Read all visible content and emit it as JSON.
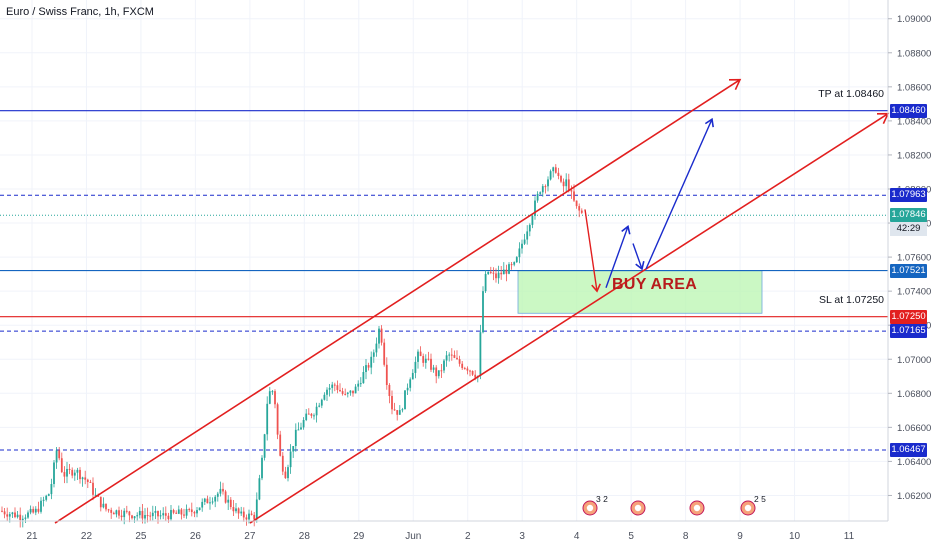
{
  "header": {
    "title": "Euro / Swiss Franc, 1h, FXCM"
  },
  "annotations": {
    "buy_area": "BUY AREA",
    "tp_label": "TP at 1.08460",
    "sl_label": "SL at 1.07250",
    "countdown": "42:29"
  },
  "colors": {
    "background": "#ffffff",
    "up_candle": "#26a69a",
    "down_candle": "#ef5350",
    "channel": "#e21f1f",
    "blue_line": "#1a2bcc",
    "buy_zone": "#b9f6b0",
    "current_price": "#26a69a"
  },
  "chart_data": {
    "type": "candlestick",
    "title": "Euro / Swiss Franc, 1h, FXCM",
    "ylim": [
      1.0605,
      1.0911
    ],
    "y_ticks": [
      "1.09000",
      "1.08800",
      "1.08600",
      "1.08400",
      "1.08200",
      "1.08000",
      "1.07800",
      "1.07600",
      "1.07400",
      "1.07200",
      "1.07000",
      "1.06800",
      "1.06600",
      "1.06400",
      "1.06200"
    ],
    "x_ticks": [
      "21",
      "22",
      "25",
      "26",
      "27",
      "28",
      "29",
      "Jun",
      "2",
      "3",
      "4",
      "5",
      "8",
      "9",
      "10",
      "11"
    ],
    "price_tags": [
      {
        "value": "1.08460",
        "color": "#1a2bcc"
      },
      {
        "value": "1.07963",
        "color": "#1a2bcc"
      },
      {
        "value": "1.07846",
        "color": "#26a69a"
      },
      {
        "value": "1.07521",
        "color": "#1565c0"
      },
      {
        "value": "1.07250",
        "color": "#e21f1f"
      },
      {
        "value": "1.07165",
        "color": "#1a2bcc"
      },
      {
        "value": "1.06467",
        "color": "#1a2bcc"
      }
    ],
    "levels": [
      {
        "price": 1.0846,
        "style": "solid",
        "color": "#1a2bcc"
      },
      {
        "price": 1.07963,
        "style": "dashed",
        "color": "#1a2bcc"
      },
      {
        "price": 1.07846,
        "style": "dotted",
        "color": "#26a69a"
      },
      {
        "price": 1.07521,
        "style": "solid",
        "color": "#1565c0"
      },
      {
        "price": 1.0725,
        "style": "solid",
        "color": "#e21f1f"
      },
      {
        "price": 1.07165,
        "style": "dashed",
        "color": "#1a2bcc"
      },
      {
        "price": 1.06467,
        "style": "dashed",
        "color": "#1a2bcc"
      }
    ],
    "price_path": [
      [
        0,
        1.0611
      ],
      [
        20,
        1.0608
      ],
      [
        35,
        1.061
      ],
      [
        50,
        1.0622
      ],
      [
        57,
        1.0648
      ],
      [
        63,
        1.0632
      ],
      [
        75,
        1.0635
      ],
      [
        88,
        1.0628
      ],
      [
        95,
        1.062
      ],
      [
        105,
        1.0612
      ],
      [
        130,
        1.0609
      ],
      [
        160,
        1.0608
      ],
      [
        190,
        1.061
      ],
      [
        210,
        1.0618
      ],
      [
        220,
        1.0622
      ],
      [
        230,
        1.0615
      ],
      [
        240,
        1.0608
      ],
      [
        255,
        1.0608
      ],
      [
        262,
        1.064
      ],
      [
        268,
        1.068
      ],
      [
        274,
        1.0682
      ],
      [
        279,
        1.0645
      ],
      [
        285,
        1.0632
      ],
      [
        295,
        1.0655
      ],
      [
        305,
        1.0665
      ],
      [
        315,
        1.067
      ],
      [
        325,
        1.0682
      ],
      [
        335,
        1.0685
      ],
      [
        345,
        1.0678
      ],
      [
        355,
        1.0682
      ],
      [
        362,
        1.069
      ],
      [
        372,
        1.07
      ],
      [
        380,
        1.072
      ],
      [
        386,
        1.069
      ],
      [
        392,
        1.0672
      ],
      [
        400,
        1.0668
      ],
      [
        410,
        1.069
      ],
      [
        418,
        1.0702
      ],
      [
        428,
        1.0698
      ],
      [
        438,
        1.069
      ],
      [
        448,
        1.0703
      ],
      [
        458,
        1.0698
      ],
      [
        468,
        1.0695
      ],
      [
        478,
        1.069
      ],
      [
        483,
        1.074
      ],
      [
        487,
        1.0752
      ],
      [
        495,
        1.0748
      ],
      [
        505,
        1.0752
      ],
      [
        515,
        1.0755
      ],
      [
        522,
        1.0768
      ],
      [
        530,
        1.0782
      ],
      [
        540,
        1.08
      ],
      [
        550,
        1.0808
      ],
      [
        556,
        1.0812
      ],
      [
        562,
        1.08
      ],
      [
        567,
        1.0805
      ],
      [
        572,
        1.0795
      ],
      [
        577,
        1.0788
      ],
      [
        583,
        1.0785
      ]
    ],
    "channel_lines": [
      {
        "from": [
          55,
          1.06038
        ],
        "to": [
          740,
          1.08642
        ]
      },
      {
        "from": [
          250,
          1.06038
        ],
        "to": [
          888,
          1.08442
        ]
      }
    ],
    "buy_zone": {
      "x": [
        518,
        762
      ],
      "y": [
        1.0727,
        1.0752
      ]
    },
    "projection_arrows": [
      {
        "color": "#e21f1f",
        "points": [
          [
            585,
            1.0788
          ],
          [
            597,
            1.074
          ]
        ]
      },
      {
        "color": "#1a2bcc",
        "points": [
          [
            606,
            1.0742
          ],
          [
            628,
            1.0778
          ]
        ]
      },
      {
        "color": "#1a2bcc",
        "points": [
          [
            633,
            1.0768
          ],
          [
            642,
            1.0753
          ]
        ]
      },
      {
        "color": "#1a2bcc",
        "points": [
          [
            646,
            1.0753
          ],
          [
            712,
            1.0841
          ]
        ]
      }
    ],
    "events": [
      {
        "x": 590,
        "label": "3 2"
      },
      {
        "x": 638,
        "label": ""
      },
      {
        "x": 697,
        "label": ""
      },
      {
        "x": 748,
        "label": "2 5"
      }
    ]
  }
}
